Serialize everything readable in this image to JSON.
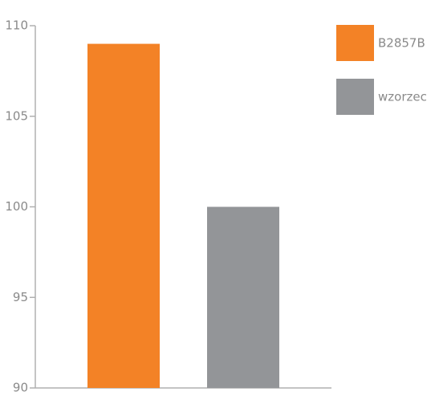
{
  "chart_data": {
    "type": "bar",
    "categories": [
      null
    ],
    "series": [
      {
        "name": "B2857B",
        "color": "#f38226",
        "values": [
          109
        ]
      },
      {
        "name": "wzorzec",
        "color": "#939598",
        "values": [
          100
        ]
      }
    ],
    "ylim": [
      90,
      110
    ],
    "yticks": [
      90,
      95,
      100,
      105,
      110
    ],
    "grid": false,
    "legend": "right"
  }
}
